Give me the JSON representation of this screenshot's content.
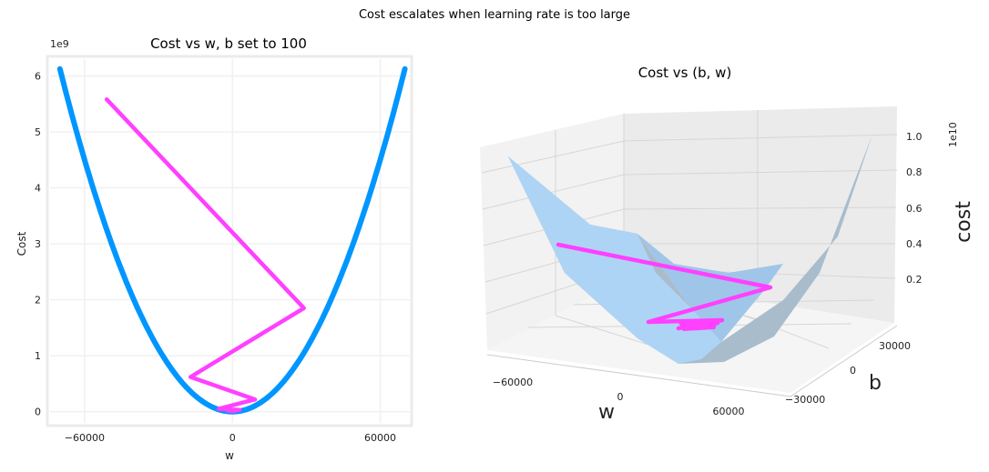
{
  "figure": {
    "suptitle": "Cost escalates when learning rate is too large"
  },
  "chart_data": [
    {
      "type": "line",
      "title": "Cost vs w, b set to 100",
      "xlabel": "w",
      "ylabel": "Cost",
      "y_offset_label": "1e9",
      "xlim": [
        -74000,
        72000
      ],
      "ylim": [
        -0.2,
        6.3
      ],
      "xticks": [
        -60000,
        0,
        60000
      ],
      "xtick_labels": [
        "−60000",
        "0",
        "60000"
      ],
      "yticks": [
        0,
        1,
        2,
        3,
        4,
        5,
        6
      ],
      "ytick_labels": [
        "0",
        "1",
        "2",
        "3",
        "4",
        "5",
        "6"
      ],
      "grid": true,
      "colors": {
        "cost_curve": "#0096ff",
        "descent_path": "#ff40ff",
        "grid": "#f0f0f0",
        "spine": "#ebebeb"
      },
      "series": [
        {
          "role": "cost_curve",
          "x_range": [
            -70000,
            70000
          ],
          "cost_coefficient": 1.25e-09
        },
        {
          "role": "descent_path",
          "x": [
            -51000,
            29000,
            -17000,
            9200,
            -5600,
            3000,
            -2000,
            1000
          ],
          "y": [
            5.58,
            1.85,
            0.62,
            0.22,
            0.05,
            0.03,
            0.02,
            0.01
          ]
        }
      ]
    },
    {
      "type": "surface",
      "title": "Cost vs (b, w)",
      "xlabel": "w",
      "ylabel": "b",
      "zlabel": "cost",
      "z_offset_label": "1e10",
      "w_ticks": [
        "−60000",
        "0",
        "60000"
      ],
      "b_ticks": [
        "30000",
        "0",
        "−30000"
      ],
      "z_ticks": [
        "0.2",
        "0.4",
        "0.6",
        "0.8",
        "1.0"
      ],
      "colors": {
        "surface_light": "#aed4f5",
        "surface_dark": "#a9bccc",
        "descent_path": "#ff40ff",
        "pane": "#f2f2f2",
        "grid": "#d6d6d6"
      },
      "descent_path_summary": "zig-zag from high cost toward minimum"
    }
  ]
}
